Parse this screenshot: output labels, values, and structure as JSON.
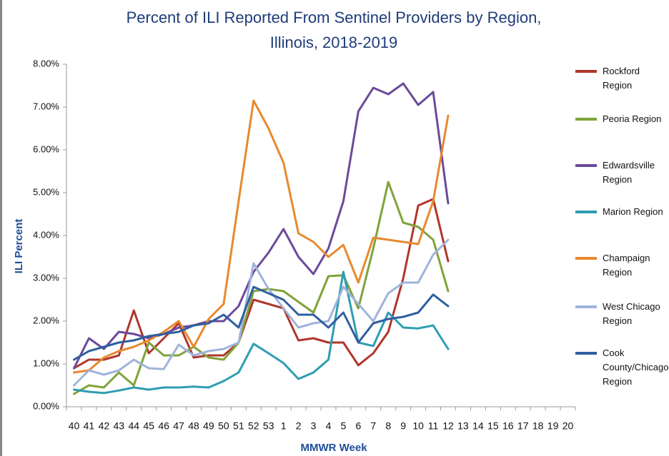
{
  "chart_data": {
    "type": "line",
    "title": [
      "Percent of ILI Reported From Sentinel Providers by Region,",
      "Illinois, 2018-2019"
    ],
    "x_label": "MMWR Week",
    "y_label": "ILI Percent",
    "categories": [
      "40",
      "41",
      "42",
      "43",
      "44",
      "45",
      "46",
      "47",
      "48",
      "49",
      "50",
      "51",
      "52",
      "53",
      "1",
      "2",
      "3",
      "4",
      "5",
      "6",
      "7",
      "8",
      "9",
      "10",
      "11",
      "12",
      "13",
      "14",
      "15",
      "16",
      "17",
      "18",
      "19",
      "20"
    ],
    "ylim": [
      0,
      8
    ],
    "yticks": [
      {
        "value": 0,
        "label": "0.00%"
      },
      {
        "value": 1,
        "label": "1.00%"
      },
      {
        "value": 2,
        "label": "2.00%"
      },
      {
        "value": 3,
        "label": "3.00%"
      },
      {
        "value": 4,
        "label": "4.00%"
      },
      {
        "value": 5,
        "label": "5.00%"
      },
      {
        "value": 6,
        "label": "6.00%"
      },
      {
        "value": 7,
        "label": "7.00%"
      },
      {
        "value": 8,
        "label": "8.00%"
      }
    ],
    "grid": false,
    "legend": "right",
    "series": [
      {
        "name": "Rockford Region",
        "color": "#b0362c",
        "values": [
          0.9,
          1.1,
          1.1,
          1.2,
          2.25,
          1.25,
          1.6,
          1.95,
          1.15,
          1.2,
          1.2,
          1.5,
          2.5,
          2.4,
          2.3,
          1.55,
          1.6,
          1.5,
          1.5,
          0.97,
          1.25,
          1.75,
          3.0,
          4.7,
          4.85,
          3.4,
          null,
          null,
          null,
          null,
          null,
          null,
          null,
          null
        ]
      },
      {
        "name": "Peoria Region",
        "color": "#7fa33a",
        "values": [
          0.3,
          0.5,
          0.45,
          0.8,
          0.5,
          1.5,
          1.2,
          1.2,
          1.4,
          1.15,
          1.1,
          1.5,
          2.7,
          2.75,
          2.7,
          2.45,
          2.2,
          3.05,
          3.07,
          2.3,
          3.7,
          5.25,
          4.3,
          4.2,
          3.9,
          2.7,
          null,
          null,
          null,
          null,
          null,
          null,
          null,
          null
        ]
      },
      {
        "name": "Edwardsville Region",
        "color": "#6b4a9b",
        "values": [
          0.9,
          1.6,
          1.35,
          1.75,
          1.7,
          1.6,
          1.7,
          1.85,
          1.9,
          2.0,
          2.0,
          2.35,
          3.15,
          3.6,
          4.15,
          3.5,
          3.1,
          3.7,
          4.8,
          6.9,
          7.45,
          7.3,
          7.55,
          7.05,
          7.35,
          4.75,
          null,
          null,
          null,
          null,
          null,
          null,
          null,
          null
        ]
      },
      {
        "name": "Marion Region",
        "color": "#2e9db2",
        "values": [
          0.4,
          0.35,
          0.32,
          0.38,
          0.45,
          0.4,
          0.45,
          0.45,
          0.47,
          0.45,
          0.6,
          0.8,
          1.47,
          1.25,
          1.02,
          0.65,
          0.8,
          1.1,
          3.15,
          1.5,
          1.42,
          2.2,
          1.85,
          1.83,
          1.9,
          1.35,
          null,
          null,
          null,
          null,
          null,
          null,
          null,
          null
        ]
      },
      {
        "name": "Champaign Region",
        "color": "#e8892e",
        "values": [
          0.8,
          0.85,
          1.15,
          1.3,
          1.4,
          1.55,
          1.75,
          2.0,
          1.4,
          2.05,
          2.4,
          4.8,
          7.15,
          6.5,
          5.7,
          4.05,
          3.85,
          3.5,
          3.78,
          2.9,
          3.95,
          3.9,
          3.85,
          3.8,
          4.8,
          6.8,
          null,
          null,
          null,
          null,
          null,
          null,
          null,
          null
        ]
      },
      {
        "name": "West Chicago Region",
        "color": "#9fb4da",
        "values": [
          0.5,
          0.85,
          0.75,
          0.85,
          1.1,
          0.9,
          0.88,
          1.45,
          1.2,
          1.3,
          1.35,
          1.5,
          3.35,
          2.75,
          2.3,
          1.85,
          1.95,
          2.0,
          2.8,
          2.4,
          2.0,
          2.65,
          2.9,
          2.9,
          3.55,
          3.9,
          null,
          null,
          null,
          null,
          null,
          null,
          null,
          null
        ]
      },
      {
        "name": "Cook County/Chicago Region",
        "color": "#2f5f9f",
        "values": [
          1.1,
          1.3,
          1.4,
          1.5,
          1.55,
          1.65,
          1.7,
          1.75,
          1.9,
          1.95,
          2.15,
          1.85,
          2.8,
          2.65,
          2.5,
          2.15,
          2.15,
          1.85,
          2.2,
          1.5,
          1.95,
          2.05,
          2.1,
          2.2,
          2.62,
          2.35,
          null,
          null,
          null,
          null,
          null,
          null,
          null,
          null
        ]
      }
    ]
  }
}
